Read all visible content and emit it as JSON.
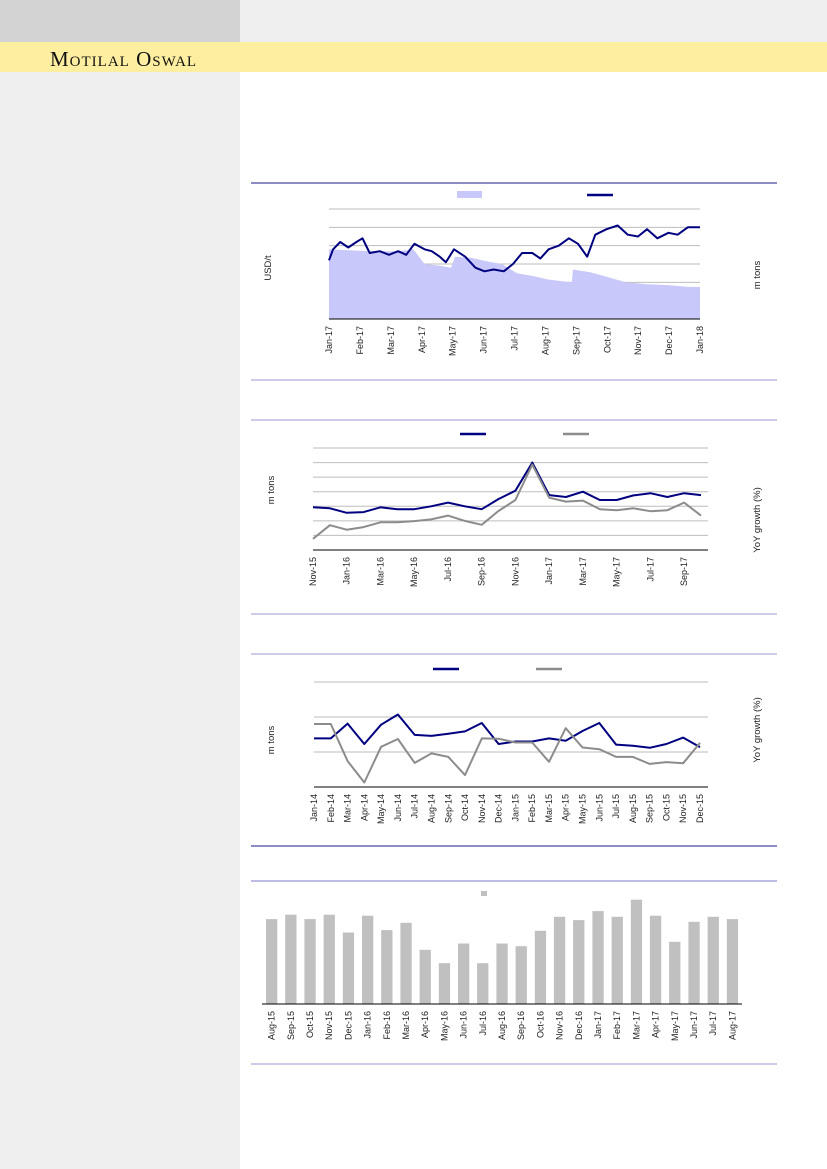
{
  "header": {
    "brand": "Motilal Oswal"
  },
  "colors": {
    "navy": "#000080",
    "area": "#c8c8fa",
    "gray": "#8c8c8c",
    "bar": "#c0c0c0",
    "brand_band": "#fdeea0"
  },
  "chart_data": [
    {
      "type": "line",
      "note_units": "relative (no y tick labels printed)",
      "ylabel": "USD/t",
      "y2label": "m tons",
      "tick_labels": [
        "Jan-17",
        "Feb-17",
        "Mar-17",
        "Apr-17",
        "May-17",
        "Jun-17",
        "Jul-17",
        "Aug-17",
        "Sep-17",
        "Oct-17",
        "Nov-17",
        "Dec-17",
        "Jan-18"
      ],
      "ylim": [
        0,
        6
      ],
      "grid": true,
      "legend": "top-center",
      "series": [
        {
          "kind": "area",
          "color": "#c8c8fa",
          "x": [
            "2017-01-01",
            "2017-01-20",
            "2017-02-10",
            "2017-03-10",
            "2017-03-25",
            "2017-04-05",
            "2017-04-20",
            "2017-05-01",
            "2017-05-05",
            "2017-05-20",
            "2017-06-05",
            "2017-06-20",
            "2017-07-05",
            "2017-07-20",
            "2017-08-05",
            "2017-08-20",
            "2017-08-28",
            "2017-08-29",
            "2017-09-15",
            "2017-10-01",
            "2017-10-20",
            "2017-11-10",
            "2017-12-01",
            "2017-12-20",
            "2018-01-01"
          ],
          "y": [
            3.8,
            3.75,
            3.7,
            3.7,
            3.8,
            3.0,
            2.9,
            2.8,
            3.4,
            3.35,
            3.15,
            3.0,
            2.5,
            2.35,
            2.15,
            2.05,
            2.0,
            2.7,
            2.55,
            2.3,
            2.0,
            1.9,
            1.85,
            1.75,
            1.75
          ]
        },
        {
          "kind": "line",
          "color": "#000080",
          "x": [
            "2017-01-01",
            "2017-01-05",
            "2017-01-12",
            "2017-01-20",
            "2017-01-28",
            "2017-02-03",
            "2017-02-10",
            "2017-02-20",
            "2017-03-01",
            "2017-03-10",
            "2017-03-18",
            "2017-03-26",
            "2017-04-05",
            "2017-04-12",
            "2017-04-20",
            "2017-04-26",
            "2017-05-04",
            "2017-05-15",
            "2017-05-25",
            "2017-06-03",
            "2017-06-12",
            "2017-06-22",
            "2017-07-01",
            "2017-07-10",
            "2017-07-20",
            "2017-07-28",
            "2017-08-05",
            "2017-08-15",
            "2017-08-25",
            "2017-09-03",
            "2017-09-12",
            "2017-09-20",
            "2017-10-01",
            "2017-10-12",
            "2017-10-22",
            "2017-11-01",
            "2017-11-10",
            "2017-11-20",
            "2017-12-01",
            "2017-12-10",
            "2017-12-20",
            "2018-01-01"
          ],
          "y": [
            3.2,
            3.8,
            4.2,
            3.9,
            4.2,
            4.4,
            3.6,
            3.7,
            3.5,
            3.7,
            3.5,
            4.1,
            3.8,
            3.7,
            3.4,
            3.1,
            3.8,
            3.4,
            2.8,
            2.6,
            2.7,
            2.6,
            3.0,
            3.6,
            3.6,
            3.3,
            3.8,
            4.0,
            4.4,
            4.1,
            3.4,
            4.6,
            4.9,
            5.1,
            4.6,
            4.5,
            4.9,
            4.4,
            4.7,
            4.6,
            5.0,
            5.0
          ]
        }
      ],
      "legend_entries": [
        "",
        ""
      ]
    },
    {
      "type": "line",
      "ylabel": "m tons",
      "y2label": "YoY growth (%)",
      "tick_labels": [
        "Nov-15",
        "Jan-16",
        "Mar-16",
        "May-16",
        "Jul-16",
        "Sep-16",
        "Nov-16",
        "Jan-17",
        "Mar-17",
        "May-17",
        "Jul-17",
        "Sep-17"
      ],
      "categories": [
        "Nov-15",
        "Dec-15",
        "Jan-16",
        "Feb-16",
        "Mar-16",
        "Apr-16",
        "May-16",
        "Jun-16",
        "Jul-16",
        "Aug-16",
        "Sep-16",
        "Oct-16",
        "Nov-16",
        "Dec-16",
        "Jan-17",
        "Feb-17",
        "Mar-17",
        "Apr-17",
        "May-17",
        "Jun-17",
        "Jul-17",
        "Aug-17",
        "Sep-17",
        "Oct-17"
      ],
      "ylim": [
        0,
        7
      ],
      "grid": true,
      "legend": "top-center",
      "series": [
        {
          "color": "#000080",
          "values": [
            2.93,
            2.86,
            2.55,
            2.6,
            2.93,
            2.8,
            2.8,
            3.0,
            3.25,
            3.0,
            2.8,
            3.5,
            4.07,
            6.0,
            3.77,
            3.64,
            4.0,
            3.43,
            3.43,
            3.75,
            3.9,
            3.64,
            3.9,
            3.77
          ]
        },
        {
          "color": "#8c8c8c",
          "values": [
            0.77,
            1.7,
            1.39,
            1.57,
            1.9,
            1.9,
            1.98,
            2.1,
            2.36,
            2.0,
            1.73,
            2.68,
            3.43,
            5.86,
            3.59,
            3.32,
            3.39,
            2.8,
            2.73,
            2.86,
            2.66,
            2.73,
            3.25,
            2.36
          ]
        }
      ]
    },
    {
      "type": "line",
      "ylabel": "m tons",
      "y2label": "YoY growth (%)",
      "categories": [
        "Jan-14",
        "Feb-14",
        "Mar-14",
        "Apr-14",
        "May-14",
        "Jun-14",
        "Jul-14",
        "Aug-14",
        "Sep-14",
        "Oct-14",
        "Nov-14",
        "Dec-14",
        "Jan-15",
        "Feb-15",
        "Mar-15",
        "Apr-15",
        "May-15",
        "Jun-15",
        "Jul-15",
        "Aug-15",
        "Sep-15",
        "Oct-15",
        "Nov-15",
        "Dec-15"
      ],
      "tick_labels": [
        "Jan-14",
        "Feb-14",
        "Mar-14",
        "Apr-14",
        "May-14",
        "Jun-14",
        "Jul-14",
        "Aug-14",
        "Sep-14",
        "Oct-14",
        "Nov-14",
        "Dec-14",
        "Jan-15",
        "Feb-15",
        "Mar-15",
        "Apr-15",
        "May-15",
        "Jun-15",
        "Jul-15",
        "Aug-15",
        "Sep-15",
        "Oct-15",
        "Nov-15",
        "Dec-15"
      ],
      "ylim": [
        0,
        3
      ],
      "grid": true,
      "legend": "top-center",
      "series": [
        {
          "color": "#000080",
          "values": [
            1.39,
            1.39,
            1.81,
            1.23,
            1.78,
            2.07,
            1.49,
            1.46,
            1.52,
            1.59,
            1.83,
            1.23,
            1.3,
            1.3,
            1.39,
            1.32,
            1.6,
            1.83,
            1.21,
            1.18,
            1.12,
            1.23,
            1.41,
            1.14
          ]
        },
        {
          "color": "#8c8c8c",
          "values": [
            1.8,
            1.8,
            0.74,
            0.13,
            1.15,
            1.37,
            0.69,
            0.96,
            0.86,
            0.34,
            1.39,
            1.38,
            1.27,
            1.27,
            0.72,
            1.68,
            1.13,
            1.08,
            0.86,
            0.86,
            0.66,
            0.71,
            0.68,
            1.26
          ]
        }
      ]
    },
    {
      "type": "bar",
      "categories": [
        "Aug-15",
        "Sep-15",
        "Oct-15",
        "Nov-15",
        "Dec-15",
        "Jan-16",
        "Feb-16",
        "Mar-16",
        "Apr-16",
        "May-16",
        "Jun-16",
        "Jul-16",
        "Aug-16",
        "Sep-16",
        "Oct-16",
        "Nov-16",
        "Dec-16",
        "Jan-17",
        "Feb-17",
        "Mar-17",
        "Apr-17",
        "May-17",
        "Jun-17",
        "Jul-17",
        "Aug-17"
      ],
      "values": [
        25.4,
        26.7,
        25.4,
        26.7,
        21.4,
        26.4,
        22.1,
        24.3,
        16.2,
        12.2,
        18.1,
        12.2,
        18.1,
        17.3,
        21.9,
        26.1,
        25.1,
        27.8,
        26.1,
        31.2,
        26.4,
        18.6,
        24.6,
        26.1,
        25.4
      ],
      "ylim": [
        0,
        35
      ],
      "grid": false,
      "legend": "top-center",
      "color": "#c0c0c0"
    }
  ]
}
